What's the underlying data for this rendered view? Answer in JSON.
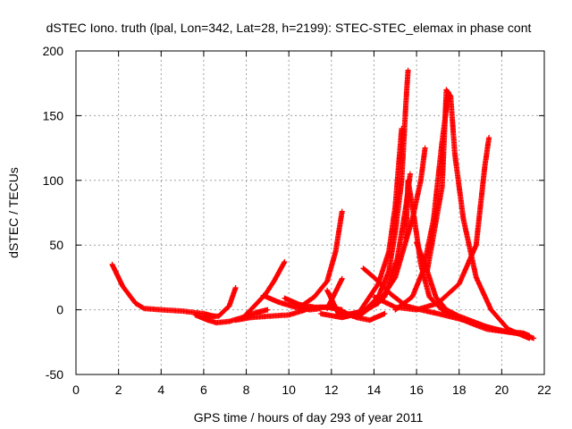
{
  "chart_data": {
    "type": "scatter",
    "title": "dSTEC Iono. truth (lpal, Lon=342, Lat=28, h=2199): STEC-STEC_elemax in phase cont",
    "xlabel": "GPS time / hours of day 293 of year 2011",
    "ylabel": "dSTEC  / TECUs",
    "xlim": [
      0,
      22
    ],
    "ylim": [
      -50,
      200
    ],
    "xticks": [
      0,
      2,
      4,
      6,
      8,
      10,
      12,
      14,
      16,
      18,
      20,
      22
    ],
    "yticks": [
      -50,
      0,
      50,
      100,
      150,
      200
    ],
    "grid": true,
    "legend": "none",
    "marker": "plus",
    "color": "#ff0000",
    "series": [
      {
        "x": [
          1.7,
          2.2,
          2.8,
          3.2,
          4.0,
          5.0,
          6.0,
          6.5
        ],
        "y": [
          35,
          18,
          5,
          1,
          0,
          -1,
          -3,
          -5
        ]
      },
      {
        "x": [
          6.0,
          6.7,
          7.2,
          7.5
        ],
        "y": [
          -5,
          -5,
          3,
          17
        ]
      },
      {
        "x": [
          5.6,
          6.2,
          6.6,
          7.2,
          7.8,
          8.5,
          9.0
        ],
        "y": [
          -4,
          -8,
          -10,
          -9,
          -6,
          -2,
          0
        ]
      },
      {
        "x": [
          7.8,
          8.5,
          8.9,
          9.3,
          9.8
        ],
        "y": [
          -7,
          5,
          12,
          22,
          37
        ]
      },
      {
        "x": [
          7.5,
          8.2,
          9.0,
          10.0,
          10.6,
          11.1
        ],
        "y": [
          -8,
          -6,
          -5,
          -4,
          -1,
          2
        ]
      },
      {
        "x": [
          8.8,
          9.5,
          10.3,
          11.0,
          11.5
        ],
        "y": [
          11,
          6,
          2,
          0,
          1
        ]
      },
      {
        "x": [
          9.8,
          10.5,
          11.2,
          11.8,
          12.5
        ],
        "y": [
          9,
          4,
          2,
          2,
          0
        ]
      },
      {
        "x": [
          10.6,
          11.2,
          11.8,
          12.2,
          12.5
        ],
        "y": [
          3,
          10,
          22,
          45,
          76
        ]
      },
      {
        "x": [
          11.8,
          12.1,
          12.3,
          12.4,
          12.8,
          13.2
        ],
        "y": [
          15,
          5,
          -2,
          -5,
          -4,
          -2
        ]
      },
      {
        "x": [
          11.8,
          12.2,
          12.5
        ],
        "y": [
          1,
          14,
          24
        ]
      },
      {
        "x": [
          10.5,
          11.0,
          11.5,
          12.0,
          12.6,
          13.2,
          13.8,
          14.5
        ],
        "y": [
          0,
          1,
          2,
          2,
          -2,
          -6,
          -8,
          -3
        ]
      },
      {
        "x": [
          11.5,
          12.5,
          13.0,
          13.6,
          14.2,
          14.7,
          15.0,
          15.3,
          15.5,
          15.6
        ],
        "y": [
          -3,
          -6,
          -4,
          0,
          10,
          30,
          60,
          100,
          160,
          185
        ]
      },
      {
        "x": [
          12.2,
          13.3,
          14.2,
          14.7,
          15.0,
          15.3
        ],
        "y": [
          -5,
          -2,
          20,
          45,
          80,
          140
        ]
      },
      {
        "x": [
          13.2,
          14.5,
          15.1,
          15.5,
          15.7
        ],
        "y": [
          -6,
          10,
          40,
          80,
          105
        ]
      },
      {
        "x": [
          15.5,
          15.6,
          15.9,
          16.2,
          16.6,
          17.2,
          17.8,
          18.5,
          19.3,
          20.2,
          21.0,
          21.5
        ],
        "y": [
          55,
          100,
          70,
          35,
          10,
          0,
          -5,
          -10,
          -15,
          -17,
          -19,
          -22
        ]
      },
      {
        "x": [
          13.0,
          14.2,
          15.0,
          15.8,
          16.2,
          16.4
        ],
        "y": [
          -5,
          5,
          25,
          70,
          100,
          125
        ]
      },
      {
        "x": [
          13.5,
          14.0,
          14.8,
          15.5,
          16.2,
          17.0,
          18.0,
          19.0,
          20.0
        ],
        "y": [
          32,
          25,
          12,
          3,
          0,
          -3,
          -7,
          -12,
          -16
        ]
      },
      {
        "x": [
          14.0,
          15.0,
          16.0,
          17.0,
          18.0,
          18.8,
          19.0,
          19.2,
          19.4
        ],
        "y": [
          10,
          2,
          0,
          5,
          20,
          50,
          80,
          110,
          133
        ]
      },
      {
        "x": [
          16.5,
          17.2,
          17.4,
          17.6,
          17.8,
          18.2,
          18.8,
          19.5,
          20.3,
          21.0,
          21.3
        ],
        "y": [
          30,
          95,
          170,
          165,
          120,
          70,
          25,
          0,
          -15,
          -20,
          -22
        ]
      },
      {
        "x": [
          15.0,
          15.8,
          16.3,
          16.8,
          17.2,
          17.5
        ],
        "y": [
          0,
          10,
          30,
          70,
          130,
          168
        ]
      },
      {
        "x": [
          16.0,
          16.5,
          16.9,
          17.4,
          18.0,
          18.8,
          19.6,
          20.3,
          21.0,
          21.3
        ],
        "y": [
          52,
          30,
          10,
          0,
          -5,
          -10,
          -15,
          -17,
          -18,
          -20
        ]
      }
    ]
  }
}
